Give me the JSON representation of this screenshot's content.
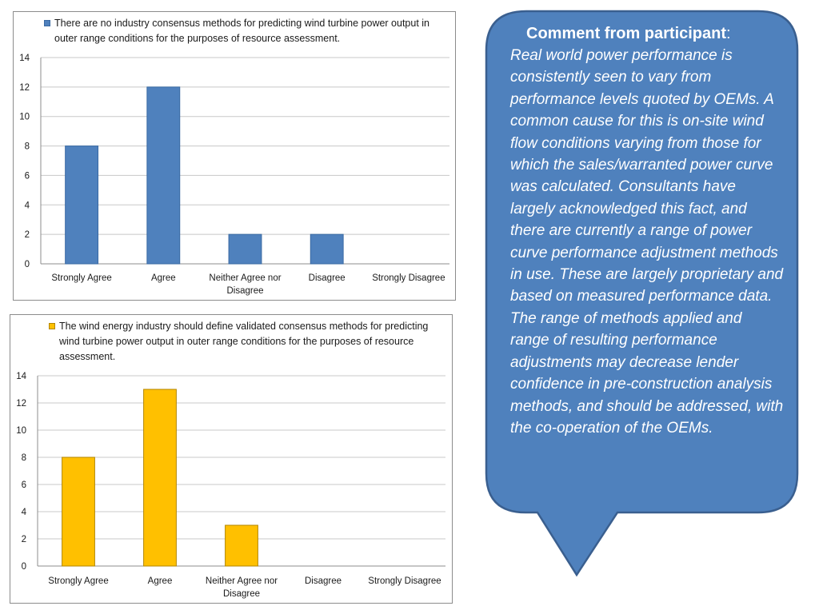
{
  "charts": [
    {
      "legend": "There are no industry consensus methods for predicting wind turbine power output in outer range conditions for the purposes of resource assessment.",
      "fill_color": "#4f81bd",
      "stroke_color": "#3a6aa3"
    },
    {
      "legend": "The wind energy industry should define validated consensus methods for predicting wind turbine power output in outer range conditions for the purposes of resource assessment.",
      "fill_color": "#ffc000",
      "stroke_color": "#b38600"
    }
  ],
  "chart_data": [
    {
      "type": "bar",
      "categories": [
        "Strongly Agree",
        "Agree",
        "Neither Agree nor Disagree",
        "Disagree",
        "Strongly Disagree"
      ],
      "series": [
        {
          "name": "There are no industry consensus methods for predicting wind turbine power output in outer range conditions for the purposes of resource assessment.",
          "values": [
            8,
            12,
            2,
            2,
            0
          ]
        }
      ],
      "yticks": [
        0,
        2,
        4,
        6,
        8,
        10,
        12,
        14
      ],
      "ylim": [
        0,
        14
      ],
      "grid": true,
      "legend_position": "top",
      "title": "",
      "xlabel": "",
      "ylabel": ""
    },
    {
      "type": "bar",
      "categories": [
        "Strongly Agree",
        "Agree",
        "Neither Agree nor Disagree",
        "Disagree",
        "Strongly Disagree"
      ],
      "series": [
        {
          "name": "The wind energy industry should define validated consensus methods for predicting wind turbine power output in outer range conditions for the purposes of resource assessment.",
          "values": [
            8,
            13,
            3,
            0,
            0
          ]
        }
      ],
      "yticks": [
        0,
        2,
        4,
        6,
        8,
        10,
        12,
        14
      ],
      "ylim": [
        0,
        14
      ],
      "grid": true,
      "legend_position": "top",
      "title": "",
      "xlabel": "",
      "ylabel": ""
    }
  ],
  "comment": {
    "heading": "Comment from participant",
    "heading_suffix": ":",
    "body": "Real world power performance is consistently seen to vary from performance levels quoted by OEMs. A common cause for this is on-site wind flow conditions varying from those for which the sales/warranted power curve was calculated. Consultants have largely acknowledged this fact, and there are currently a range of power curve performance adjustment methods in use. These are largely proprietary and based on measured performance data. The range of methods applied and range of resulting performance adjustments may decrease lender confidence in pre-construction analysis methods, and should be addressed, with the co-operation of the OEMs.",
    "fill_color": "#4f81bd",
    "border_color": "#3a5f8f"
  }
}
